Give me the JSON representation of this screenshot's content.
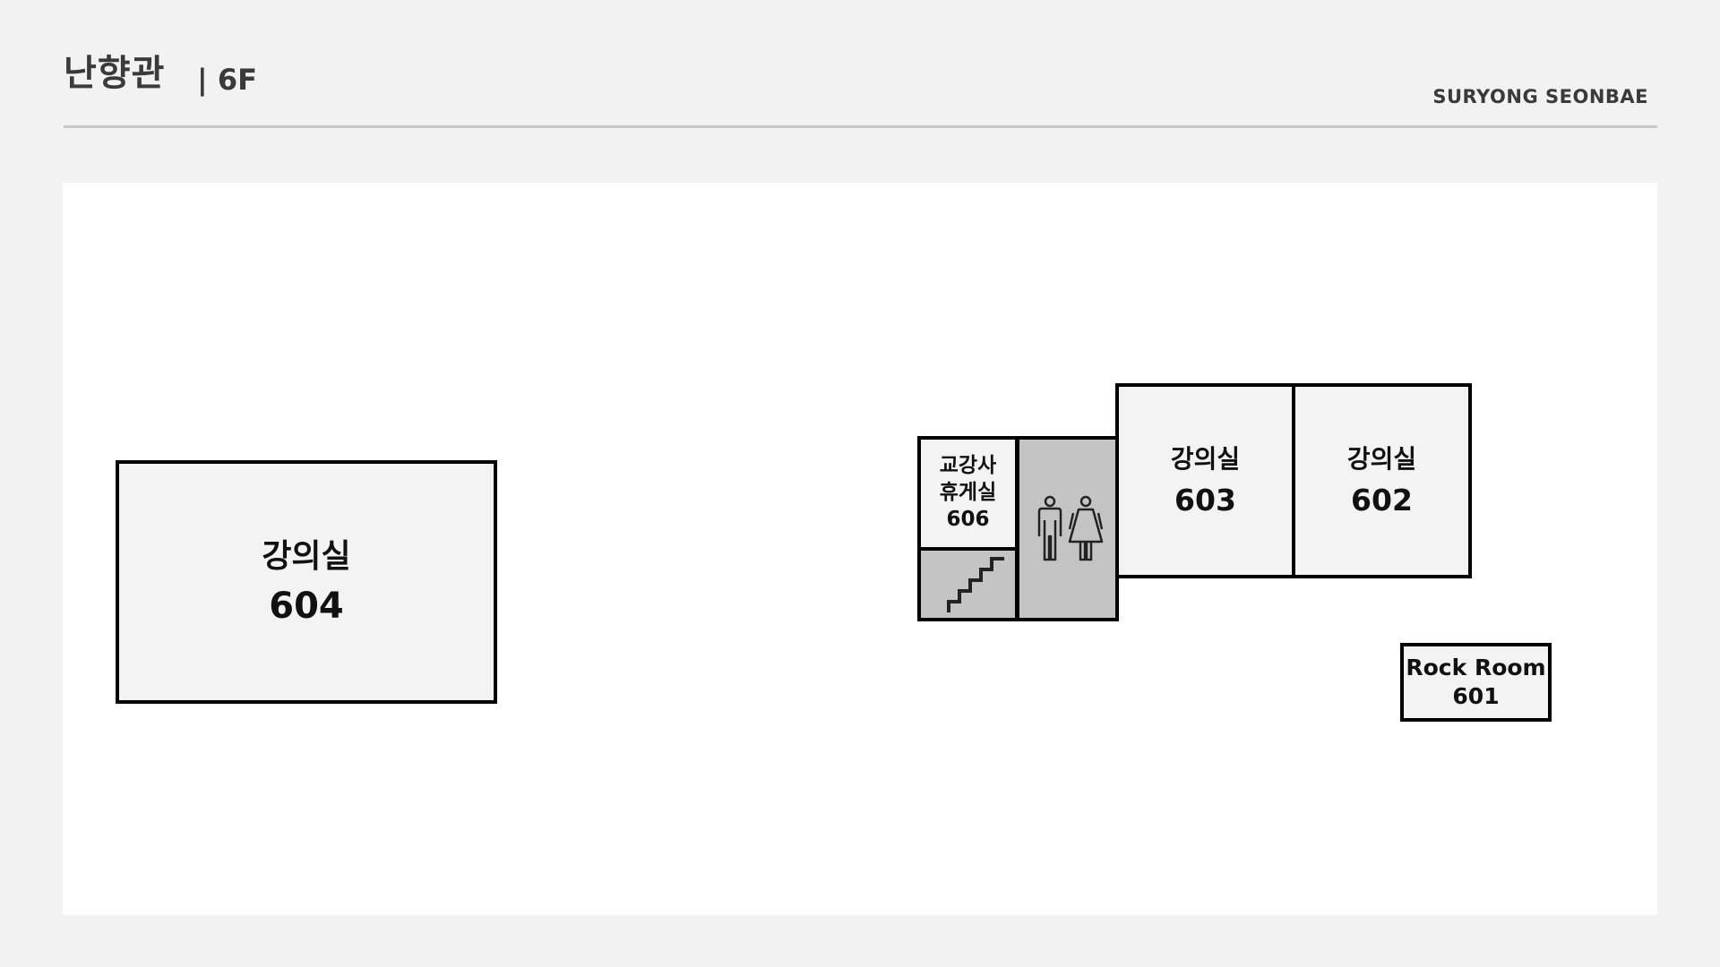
{
  "header": {
    "building_name": "난향관",
    "floor_label": "| 6F",
    "brand": "SURYONG SEONBAE"
  },
  "rooms": {
    "room_604": {
      "name": "강의실",
      "number": "604"
    },
    "room_606": {
      "line1": "교강사",
      "line2": "휴게실",
      "number": "606"
    },
    "room_603": {
      "name": "강의실",
      "number": "603"
    },
    "room_602": {
      "name": "강의실",
      "number": "602"
    },
    "room_601": {
      "name": "Rock Room",
      "number": "601"
    }
  },
  "icons": {
    "stairs": "stairs-icon",
    "restroom": "restroom-icon"
  },
  "colors": {
    "background": "#f2f2f2",
    "map_background": "#ffffff",
    "room_fill": "#f3f3f3",
    "facility_fill": "#c4c4c4",
    "outline": "#000000",
    "text": "#3a3a3a"
  }
}
